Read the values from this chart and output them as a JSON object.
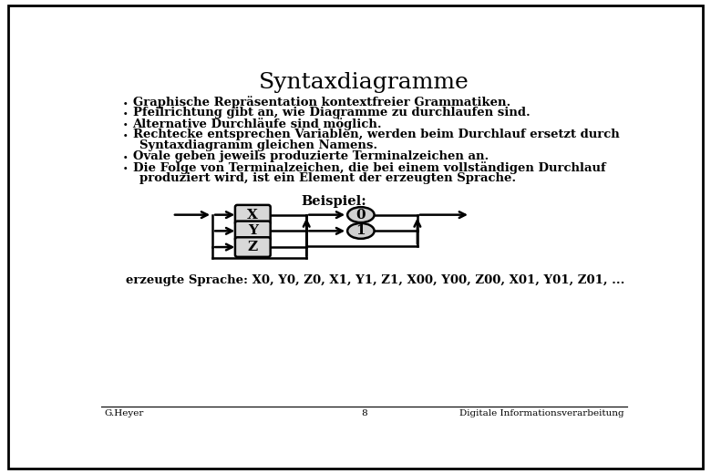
{
  "title": "Syntaxdiagramme",
  "title_fontsize": 18,
  "bullet_points": [
    "Graphische Repräsentation kontextfreier Grammatiken.",
    "Pfeilrichtung gibt an, wie Diagramme zu durchlaufen sind.",
    "Alternative Durchläufe sind möglich.",
    "Rechtecke entsprechen Variablen, werden beim Durchlauf ersetzt durch\nSyntaxdiagramm gleichen Namens.",
    "Ovale geben jeweils produzierte Terminalzeichen an.",
    "Die Folge von Terminalzeichen, die bei einem vollständigen Durchlauf\nproduziert wird, ist ein Element der erzeugten Sprache."
  ],
  "beispiel_label": "Beispiel:",
  "generated_label": "erzeugte Sprache: X0, Y0, Z0, X1, Y1, Z1, X00, Y00, Z00, X01, Y01, Z01, ...",
  "footer_left": "G.Heyer",
  "footer_center": "8",
  "footer_right": "Digitale Informationsverarbeitung",
  "bg_color": "#ffffff",
  "border_color": "#000000",
  "text_color": "#000000",
  "box_fill": "#d8d8d8",
  "oval_fill": "#d0d0d0"
}
